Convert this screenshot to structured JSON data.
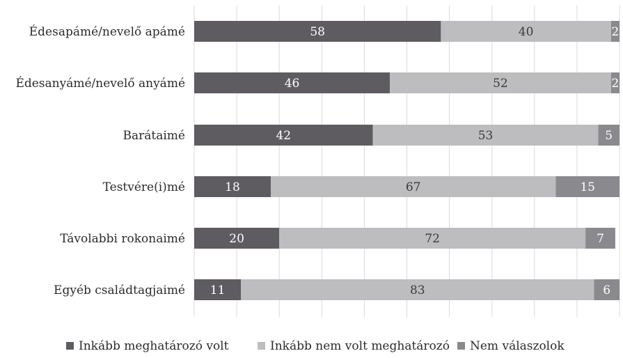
{
  "chart_data": {
    "type": "bar",
    "orientation": "horizontal",
    "stacked": true,
    "categories": [
      "Édesapámé/nevelő apámé",
      "Édesanyámé/nevelő anyámé",
      "Barátaimé",
      "Testvére(i)mé",
      "Távolabbi rokonaimé",
      "Egyéb családtagjaimé"
    ],
    "series": [
      {
        "name": "Inkább meghatározó volt",
        "values": [
          58,
          46,
          42,
          18,
          20,
          11
        ],
        "color": "#5e5c61",
        "label_color": "#ffffff"
      },
      {
        "name": "Inkább nem volt meghatározó",
        "values": [
          40,
          52,
          53,
          67,
          72,
          83
        ],
        "color": "#bdbdbf",
        "label_color": "#3a3a3a"
      },
      {
        "name": "Nem válaszolok",
        "values": [
          2,
          2,
          5,
          15,
          7,
          6
        ],
        "color": "#8a8a8e",
        "label_color": "#ffffff"
      }
    ],
    "xlim": [
      0,
      100
    ],
    "grid": true,
    "legend_position": "bottom"
  }
}
